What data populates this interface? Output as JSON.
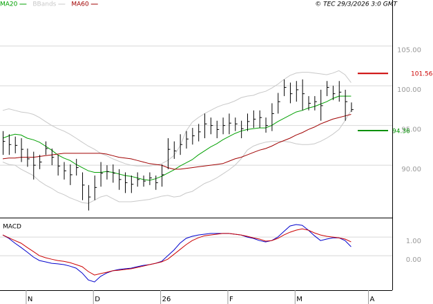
{
  "chart_data": [
    {
      "type": "ohlc",
      "stamp": "© TEC 29/3/2026 3:0 GMT",
      "values": [
        93.0,
        92.6,
        92.5,
        92.0,
        90.8,
        90.0,
        90.4,
        92.1,
        91.0,
        89.9,
        89.3,
        88.8,
        89.7,
        87.5,
        86.0,
        87.2,
        89.0,
        89.2,
        89.0,
        88.2,
        87.8,
        87.6,
        88.2,
        88.0,
        88.4,
        87.8,
        88.8,
        92.0,
        91.8,
        92.6,
        93.3,
        93.7,
        94.2,
        95.2,
        95.0,
        94.5,
        95.0,
        95.3,
        95.2,
        94.6,
        95.5,
        95.8,
        96.0,
        95.0,
        96.5,
        98.0,
        99.8,
        99.0,
        99.5,
        99.0,
        97.8,
        98.0,
        97.5,
        99.8,
        99.0,
        99.2,
        98.0,
        97.0,
        null,
        null,
        null
      ],
      "highs": [
        94.3,
        93.9,
        93.6,
        93.4,
        92.1,
        91.7,
        91.3,
        93.0,
        92.1,
        91.3,
        90.4,
        90.1,
        90.8,
        89.1,
        87.5,
        88.7,
        90.4,
        90.0,
        90.1,
        89.5,
        89.1,
        88.7,
        89.1,
        88.7,
        89.1,
        88.7,
        90.1,
        93.4,
        93.0,
        93.9,
        94.3,
        94.7,
        95.2,
        96.5,
        96.0,
        95.6,
        96.0,
        96.5,
        96.0,
        95.6,
        96.5,
        96.9,
        96.9,
        96.0,
        97.8,
        99.1,
        100.8,
        100.4,
        100.6,
        100.8,
        98.7,
        98.7,
        99.5,
        100.6,
        100.0,
        100.6,
        99.5,
        97.9,
        null,
        null,
        null
      ],
      "lows": [
        91.3,
        91.3,
        91.5,
        90.4,
        89.8,
        88.2,
        89.5,
        91.3,
        90.0,
        88.7,
        88.2,
        87.5,
        88.7,
        85.6,
        84.3,
        85.6,
        87.3,
        88.2,
        87.8,
        86.9,
        86.5,
        86.5,
        87.3,
        87.3,
        87.5,
        86.9,
        87.3,
        89.5,
        90.8,
        91.3,
        92.1,
        92.6,
        93.0,
        93.4,
        93.9,
        93.4,
        93.9,
        93.9,
        94.3,
        93.4,
        94.3,
        94.7,
        94.7,
        94.1,
        94.3,
        96.5,
        98.7,
        97.8,
        98.0,
        96.9,
        96.9,
        96.9,
        95.6,
        98.7,
        98.2,
        98.0,
        95.6,
        96.7,
        null,
        null,
        null
      ],
      "color": "#000000",
      "series": [
        {
          "name": "MA20",
          "color": "#00a000",
          "values": [
            93.4,
            93.7,
            93.9,
            93.8,
            93.4,
            93.2,
            92.9,
            92.4,
            91.9,
            91.3,
            90.9,
            90.6,
            90.1,
            89.7,
            89.3,
            89.1,
            89.1,
            89.2,
            89.1,
            88.9,
            88.7,
            88.6,
            88.4,
            88.2,
            88.1,
            88.3,
            88.6,
            89.0,
            89.4,
            89.9,
            90.3,
            90.7,
            91.3,
            91.8,
            92.3,
            92.7,
            93.2,
            93.6,
            94.0,
            94.3,
            94.5,
            94.6,
            94.7,
            94.7,
            95.0,
            95.5,
            95.9,
            96.3,
            96.7,
            96.9,
            97.2,
            97.4,
            97.7,
            98.0,
            98.4,
            98.7,
            98.7,
            98.7,
            null,
            null,
            null
          ]
        },
        {
          "name": "BBands",
          "color": "#c8c8c8",
          "upper": [
            96.9,
            97.1,
            96.9,
            96.7,
            96.6,
            96.4,
            96.0,
            95.5,
            95.0,
            94.6,
            94.3,
            93.9,
            93.4,
            92.9,
            92.4,
            92.0,
            91.5,
            91.2,
            90.8,
            90.5,
            90.2,
            90.0,
            89.9,
            89.9,
            89.9,
            90.0,
            90.2,
            90.6,
            91.2,
            92.4,
            94.3,
            95.4,
            96.0,
            96.5,
            96.9,
            97.3,
            97.6,
            97.8,
            98.1,
            98.5,
            98.7,
            98.8,
            99.1,
            99.3,
            99.7,
            100.2,
            100.8,
            101.3,
            101.6,
            101.7,
            101.7,
            101.6,
            101.5,
            101.4,
            101.6,
            101.9,
            101.4,
            100.4,
            null,
            null,
            null
          ],
          "lower": [
            90.4,
            90.1,
            90.0,
            89.5,
            89.1,
            88.7,
            88.0,
            87.5,
            87.1,
            86.6,
            86.3,
            85.9,
            85.6,
            85.3,
            85.2,
            85.6,
            86.0,
            86.2,
            85.8,
            85.4,
            85.4,
            85.4,
            85.5,
            85.6,
            85.7,
            85.9,
            86.1,
            86.2,
            86.0,
            86.1,
            86.5,
            86.7,
            87.2,
            87.7,
            88.0,
            88.4,
            88.9,
            89.4,
            90.0,
            90.8,
            91.9,
            92.4,
            92.7,
            92.9,
            93.0,
            93.0,
            93.0,
            92.9,
            92.7,
            92.6,
            92.6,
            92.7,
            93.0,
            93.4,
            93.9,
            94.5,
            95.6,
            96.9,
            null,
            null,
            null
          ]
        },
        {
          "name": "MA60",
          "color": "#a00000",
          "values": [
            90.8,
            90.9,
            90.9,
            91.0,
            91.0,
            91.0,
            91.1,
            91.2,
            91.3,
            91.4,
            91.5,
            91.5,
            91.5,
            91.5,
            91.5,
            91.5,
            91.5,
            91.4,
            91.2,
            91.0,
            90.9,
            90.8,
            90.6,
            90.4,
            90.2,
            90.1,
            90.0,
            89.7,
            89.5,
            89.5,
            89.6,
            89.7,
            89.8,
            89.9,
            90.0,
            90.1,
            90.2,
            90.5,
            90.8,
            91.0,
            91.3,
            91.6,
            91.9,
            92.1,
            92.4,
            92.8,
            93.1,
            93.4,
            93.8,
            94.1,
            94.5,
            94.8,
            95.2,
            95.5,
            95.8,
            96.0,
            96.2,
            96.4,
            null,
            null,
            null
          ]
        }
      ],
      "levels": [
        {
          "value": 101.56,
          "color": "#cc0000"
        },
        {
          "value": 94.36,
          "color": "#009000"
        }
      ],
      "ylim": [
        83.4,
        110.8
      ],
      "yticks": [
        {
          "value": 105,
          "label": "105.00"
        },
        {
          "value": 100,
          "label": "100.00"
        },
        {
          "value": 95,
          "label": "95.00"
        },
        {
          "value": 90,
          "label": "90.00"
        }
      ],
      "grid": true
    },
    {
      "type": "line",
      "title": "MACD",
      "categories": [
        null,
        null,
        null,
        null,
        "N",
        null,
        null,
        null,
        null,
        null,
        null,
        null,
        null,
        null,
        null,
        "D",
        null,
        null,
        null,
        null,
        null,
        null,
        null,
        null,
        null,
        null,
        "26",
        null,
        null,
        null,
        null,
        null,
        null,
        null,
        null,
        null,
        null,
        "F",
        null,
        null,
        null,
        null,
        null,
        null,
        null,
        null,
        null,
        null,
        "M",
        null,
        null,
        null,
        null,
        null,
        null,
        null,
        null,
        null,
        null,
        null,
        "A"
      ],
      "series": [
        {
          "color": "#0000cc",
          "values": [
            1.11,
            0.93,
            0.67,
            0.44,
            0.19,
            -0.07,
            -0.26,
            -0.33,
            -0.41,
            -0.44,
            -0.48,
            -0.56,
            -0.67,
            -0.93,
            -1.3,
            -1.41,
            -1.11,
            -0.93,
            -0.81,
            -0.74,
            -0.7,
            -0.67,
            -0.59,
            -0.52,
            -0.48,
            -0.41,
            -0.3,
            0.0,
            0.3,
            0.67,
            0.93,
            1.04,
            1.11,
            1.15,
            1.19,
            1.19,
            1.19,
            1.19,
            1.15,
            1.11,
            1.0,
            0.93,
            0.81,
            0.74,
            0.81,
            1.0,
            1.3,
            1.59,
            1.67,
            1.63,
            1.37,
            1.07,
            0.81,
            0.89,
            0.96,
            0.96,
            0.81,
            0.48,
            null,
            null,
            null
          ]
        },
        {
          "color": "#cc0000",
          "values": [
            1.11,
            0.96,
            0.81,
            0.67,
            0.44,
            0.22,
            0.0,
            -0.11,
            -0.19,
            -0.26,
            -0.3,
            -0.37,
            -0.48,
            -0.59,
            -0.85,
            -1.04,
            -0.96,
            -0.89,
            -0.81,
            -0.78,
            -0.74,
            -0.7,
            -0.63,
            -0.56,
            -0.48,
            -0.41,
            -0.33,
            -0.19,
            0.07,
            0.33,
            0.59,
            0.81,
            0.96,
            1.07,
            1.11,
            1.15,
            1.19,
            1.19,
            1.15,
            1.11,
            1.04,
            0.96,
            0.89,
            0.78,
            0.81,
            0.93,
            1.11,
            1.26,
            1.37,
            1.44,
            1.37,
            1.22,
            1.11,
            1.04,
            1.0,
            0.96,
            0.89,
            0.74,
            null,
            null,
            null
          ]
        }
      ],
      "ylim": [
        -1.85,
        2.04
      ],
      "yticks": [
        {
          "value": 1,
          "label": "1.00"
        },
        {
          "value": 0,
          "label": "0.00"
        }
      ],
      "grid": true
    }
  ]
}
